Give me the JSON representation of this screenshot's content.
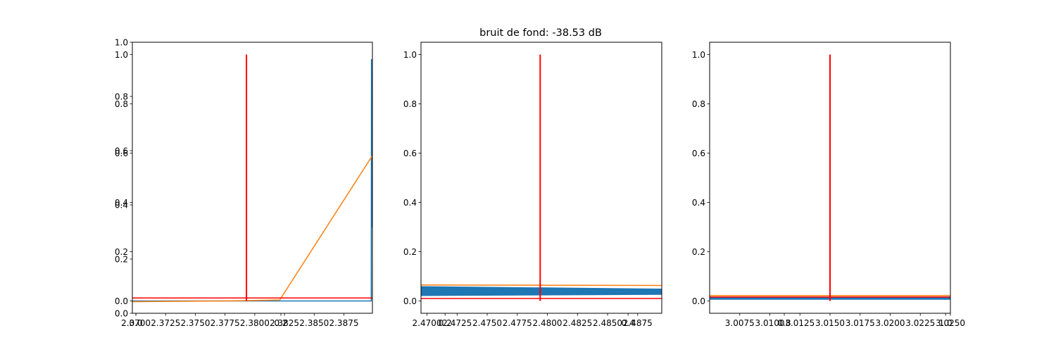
{
  "title": "bruit de fond: -38.53 dB",
  "colors": {
    "blue": "#1f77b4",
    "orange": "#ff7f0e",
    "red": "#ff0000"
  },
  "chart_data": [
    {
      "type": "line",
      "xlim": [
        2.3697,
        2.3899
      ],
      "ylim": [
        -0.05,
        1.05
      ],
      "twin_axis": {
        "ylim": [
          0.0,
          1.0
        ],
        "ticks": [
          0.0,
          0.2,
          0.4,
          0.6,
          0.8,
          1.0
        ]
      },
      "xticks": [
        "2.3700",
        "2.3725",
        "2.3750",
        "2.3775",
        "2.3800",
        "2.3825",
        "2.3850",
        "2.3875"
      ],
      "overlay_xtick": {
        "value": 2.37,
        "label": "0.0"
      },
      "overlay_xtick_2": {
        "value": 2.3822,
        "label": "0.2"
      },
      "yticks": [
        0.0,
        0.2,
        0.4,
        0.6,
        0.8,
        1.0
      ],
      "series": [
        {
          "color": "blue",
          "x": [
            2.3697,
            2.3898,
            2.38982,
            2.38986,
            2.3899
          ],
          "y": [
            0.0,
            0.0,
            0.98,
            0.3,
            0.55
          ]
        },
        {
          "color": "orange",
          "x": [
            2.3697,
            2.3775,
            2.3821,
            2.3899
          ],
          "y": [
            -0.003,
            0.0,
            0.004,
            0.59
          ]
        },
        {
          "color": "red",
          "x": [
            2.3697,
            2.3899
          ],
          "y": [
            0.012,
            0.012
          ]
        }
      ],
      "marker": {
        "color": "red",
        "x": 2.3793,
        "y0": 0.0,
        "y1": 1.0
      }
    },
    {
      "type": "line",
      "xlim": [
        2.4695,
        2.4895
      ],
      "ylim": [
        -0.05,
        1.05
      ],
      "xticks": [
        "2.4700",
        "2.4725",
        "2.4750",
        "2.4775",
        "2.4800",
        "2.4825",
        "2.4850",
        "2.4875"
      ],
      "overlay_xtick": {
        "value": 2.4715,
        "label": "0.2"
      },
      "overlay_xtick_2": {
        "value": 2.4867,
        "label": "0.4"
      },
      "yticks": [
        0.0,
        0.2,
        0.4,
        0.6,
        0.8,
        1.0
      ],
      "noise_band": {
        "color": "blue",
        "low_start": 0.02,
        "high_start": 0.06,
        "low_end": 0.025,
        "high_end": 0.05
      },
      "series": [
        {
          "color": "orange",
          "x": [
            2.4695,
            2.4895
          ],
          "y": [
            0.065,
            0.063
          ]
        },
        {
          "color": "red",
          "x": [
            2.4695,
            2.4895
          ],
          "y": [
            0.01,
            0.01
          ]
        }
      ],
      "marker": {
        "color": "red",
        "x": 2.4794,
        "y0": 0.0,
        "y1": 1.0
      }
    },
    {
      "type": "line",
      "xlim": [
        3.005,
        3.025
      ],
      "ylim": [
        -0.05,
        1.05
      ],
      "xticks": [
        "3.0075",
        "3.0100",
        "3.0125",
        "3.0150",
        "3.0175",
        "3.0200",
        "3.0225",
        "3.0250"
      ],
      "overlay_xtick": {
        "value": 3.0112,
        "label": "0.8"
      },
      "overlay_xtick_2": {
        "value": 3.0246,
        "label": "1.0"
      },
      "yticks": [
        0.0,
        0.2,
        0.4,
        0.6,
        0.8,
        1.0
      ],
      "noise_band": {
        "color": "blue",
        "low_start": 0.005,
        "high_start": 0.018,
        "low_end": 0.005,
        "high_end": 0.018
      },
      "series": [
        {
          "color": "orange",
          "x": [
            3.005,
            3.025
          ],
          "y": [
            0.022,
            0.022
          ]
        },
        {
          "color": "red",
          "x": [
            3.005,
            3.025
          ],
          "y": [
            0.016,
            0.016
          ]
        }
      ],
      "marker": {
        "color": "red",
        "x": 3.015,
        "y0": 0.0,
        "y1": 1.0
      }
    }
  ]
}
